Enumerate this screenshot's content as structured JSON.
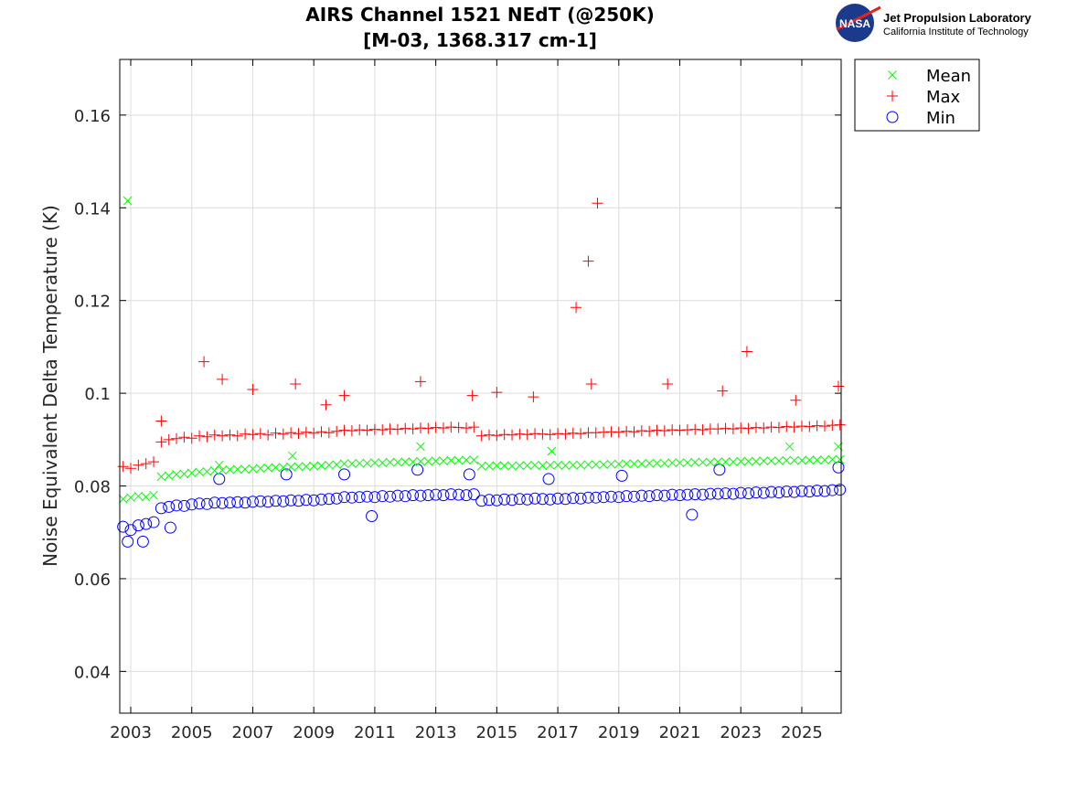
{
  "logo": {
    "line1": "Jet Propulsion Laboratory",
    "line2": "California Institute of Technology",
    "badge": "NASA"
  },
  "chart_data": {
    "type": "scatter",
    "title": [
      "AIRS Channel 1521 NEdT (@250K)",
      "[M-03, 1368.317 cm-1]"
    ],
    "xlabel": "",
    "ylabel": "Noise Equivalent Delta Temperature (K)",
    "xlim": [
      2002.64,
      2026.29
    ],
    "ylim": [
      0.031,
      0.172
    ],
    "xticks": [
      2003,
      2005,
      2007,
      2009,
      2011,
      2013,
      2015,
      2017,
      2019,
      2021,
      2023,
      2025
    ],
    "yticks": [
      0.04,
      0.06,
      0.08,
      0.1,
      0.12,
      0.14,
      0.16
    ],
    "ytick_labels": [
      "0.04",
      "0.06",
      "0.08",
      "0.1",
      "0.12",
      "0.14",
      "0.16"
    ],
    "grid": true,
    "legend_position": "outside-top-right",
    "x_start": 2002.75,
    "x_step": 0.25,
    "series": [
      {
        "name": "Mean",
        "marker": "x",
        "color": "#00ff00",
        "values": [
          0.0772,
          0.0775,
          0.0778,
          0.0776,
          0.078,
          0.082,
          0.0822,
          0.0825,
          0.0826,
          0.0828,
          0.083,
          0.0831,
          0.0833,
          0.0834,
          0.0835,
          0.0836,
          0.0836,
          0.0837,
          0.0838,
          0.0839,
          0.084,
          0.084,
          0.0841,
          0.0842,
          0.0842,
          0.0843,
          0.0844,
          0.0845,
          0.0846,
          0.0848,
          0.0848,
          0.0849,
          0.0849,
          0.085,
          0.085,
          0.0851,
          0.0851,
          0.0852,
          0.0852,
          0.0853,
          0.0853,
          0.0854,
          0.0854,
          0.0855,
          0.0855,
          0.0856,
          0.0856,
          0.0843,
          0.0843,
          0.0844,
          0.0844,
          0.0843,
          0.0844,
          0.0844,
          0.0845,
          0.0844,
          0.0845,
          0.0845,
          0.0844,
          0.0845,
          0.0845,
          0.0846,
          0.0846,
          0.0846,
          0.0847,
          0.0847,
          0.0848,
          0.0848,
          0.0848,
          0.0849,
          0.0849,
          0.0849,
          0.085,
          0.085,
          0.085,
          0.0851,
          0.0851,
          0.0851,
          0.0852,
          0.0852,
          0.0852,
          0.0853,
          0.0853,
          0.0853,
          0.0854,
          0.0854,
          0.0854,
          0.0855,
          0.0855,
          0.0855,
          0.0856,
          0.0856,
          0.0856,
          0.0857,
          0.0857
        ],
        "outliers": [
          [
            2002.9,
            0.1415
          ],
          [
            2005.9,
            0.0845
          ],
          [
            2008.3,
            0.0865
          ],
          [
            2012.5,
            0.0885
          ],
          [
            2016.8,
            0.0875
          ],
          [
            2024.6,
            0.0885
          ],
          [
            2026.2,
            0.0885
          ]
        ]
      },
      {
        "name": "Max",
        "marker": "+",
        "color": "#ff0000",
        "values": [
          0.0842,
          0.0838,
          0.0845,
          0.0848,
          0.0852,
          0.0895,
          0.09,
          0.0902,
          0.0905,
          0.0903,
          0.0908,
          0.0906,
          0.091,
          0.0908,
          0.091,
          0.0908,
          0.0912,
          0.0911,
          0.0913,
          0.091,
          0.0914,
          0.0912,
          0.0915,
          0.0913,
          0.0916,
          0.0914,
          0.0917,
          0.0915,
          0.0918,
          0.092,
          0.0919,
          0.0921,
          0.092,
          0.0922,
          0.0921,
          0.0923,
          0.0922,
          0.0924,
          0.0923,
          0.0925,
          0.0924,
          0.0926,
          0.0925,
          0.0927,
          0.0926,
          0.0925,
          0.0927,
          0.0908,
          0.091,
          0.0909,
          0.0911,
          0.091,
          0.0912,
          0.0911,
          0.0913,
          0.0912,
          0.0911,
          0.0913,
          0.0912,
          0.0914,
          0.0913,
          0.0915,
          0.0915,
          0.0916,
          0.0917,
          0.0916,
          0.0918,
          0.0917,
          0.0919,
          0.0918,
          0.092,
          0.0919,
          0.0921,
          0.092,
          0.0921,
          0.0922,
          0.0921,
          0.0923,
          0.0923,
          0.0924,
          0.0923,
          0.0925,
          0.0924,
          0.0926,
          0.0925,
          0.0927,
          0.0926,
          0.0928,
          0.0927,
          0.0929,
          0.0928,
          0.093,
          0.0929,
          0.0931,
          0.0932
        ],
        "outliers": [
          [
            2017.6,
            0.1185
          ],
          [
            2018.0,
            0.1285
          ],
          [
            2018.3,
            0.141
          ],
          [
            2023.2,
            0.109
          ],
          [
            2005.4,
            0.1068
          ],
          [
            2006.0,
            0.103
          ],
          [
            2012.5,
            0.1025
          ],
          [
            2020.6,
            0.102
          ],
          [
            2018.1,
            0.102
          ],
          [
            2026.2,
            0.1015
          ],
          [
            2008.4,
            0.102
          ],
          [
            2007.0,
            0.1008
          ],
          [
            2010.0,
            0.0995
          ],
          [
            2014.2,
            0.0995
          ],
          [
            2015.0,
            0.1002
          ],
          [
            2016.2,
            0.0992
          ],
          [
            2022.4,
            0.1005
          ],
          [
            2024.8,
            0.0985
          ],
          [
            2004.0,
            0.094
          ],
          [
            2009.4,
            0.0975
          ]
        ]
      },
      {
        "name": "Min",
        "marker": "o",
        "color": "#0000ff",
        "values": [
          0.0712,
          0.0705,
          0.0715,
          0.0718,
          0.0722,
          0.0752,
          0.0755,
          0.0758,
          0.0757,
          0.076,
          0.0762,
          0.0761,
          0.0764,
          0.0763,
          0.0764,
          0.0765,
          0.0764,
          0.0766,
          0.0767,
          0.0766,
          0.0768,
          0.0767,
          0.0769,
          0.0768,
          0.077,
          0.0769,
          0.0771,
          0.0772,
          0.0773,
          0.0776,
          0.0775,
          0.0776,
          0.0777,
          0.0776,
          0.0778,
          0.0777,
          0.0779,
          0.0778,
          0.078,
          0.0779,
          0.078,
          0.0781,
          0.078,
          0.0782,
          0.0781,
          0.078,
          0.0782,
          0.0768,
          0.077,
          0.0769,
          0.0771,
          0.077,
          0.0772,
          0.0771,
          0.0773,
          0.0772,
          0.0771,
          0.0773,
          0.0772,
          0.0774,
          0.0773,
          0.0775,
          0.0775,
          0.0776,
          0.0777,
          0.0776,
          0.0778,
          0.0777,
          0.0779,
          0.0778,
          0.078,
          0.0779,
          0.0781,
          0.078,
          0.0781,
          0.0782,
          0.0781,
          0.0783,
          0.0783,
          0.0784,
          0.0783,
          0.0785,
          0.0784,
          0.0786,
          0.0785,
          0.0787,
          0.0786,
          0.0788,
          0.0787,
          0.0789,
          0.0788,
          0.079,
          0.0789,
          0.0791,
          0.0792
        ],
        "outliers": [
          [
            2003.4,
            0.068
          ],
          [
            2002.9,
            0.068
          ],
          [
            2004.3,
            0.071
          ],
          [
            2005.9,
            0.0815
          ],
          [
            2010.0,
            0.0825
          ],
          [
            2012.4,
            0.0835
          ],
          [
            2022.3,
            0.0835
          ],
          [
            2026.2,
            0.084
          ],
          [
            2014.1,
            0.0825
          ],
          [
            2019.1,
            0.0822
          ],
          [
            2010.9,
            0.0735
          ],
          [
            2021.4,
            0.0738
          ],
          [
            2016.7,
            0.0815
          ],
          [
            2008.1,
            0.0825
          ]
        ]
      }
    ]
  }
}
